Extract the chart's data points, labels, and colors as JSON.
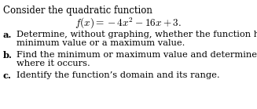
{
  "bg_color": "#ffffff",
  "title_line": "Consider the quadratic function",
  "formula": "$f(x) = -4x^2 - 16x + 3.$",
  "item_a_label": "a.",
  "item_a_text1": "Determine, without graphing, whether the function has a",
  "item_a_text2": "minimum value or a maximum value.",
  "item_b_label": "b.",
  "item_b_text1": "Find the minimum or maximum value and determine",
  "item_b_text2": "where it occurs.",
  "item_c_label": "c.",
  "item_c_text1": "Identify the function’s domain and its range.",
  "font_size_title": 8.5,
  "font_size_formula": 9.5,
  "font_size_items": 8.2,
  "text_color": "#000000",
  "font_family": "DejaVu Serif"
}
